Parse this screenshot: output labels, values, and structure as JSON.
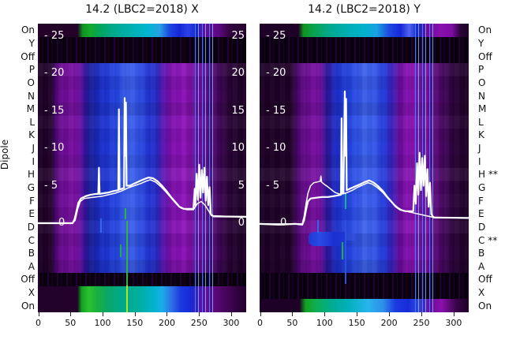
{
  "figure": {
    "left_axis_label": "Dipole",
    "panels": [
      {
        "title": "14.2 (LBC2=2018) X",
        "row_labels": [
          "On",
          "Y",
          "Off",
          "P",
          "O",
          "N",
          "M",
          "L",
          "K",
          "J",
          "I",
          "H",
          "G",
          "F",
          "E",
          "D",
          "C",
          "B",
          "A",
          "Off",
          "X",
          "On"
        ],
        "x_tick_labels": [
          "0",
          "50",
          "100",
          "150",
          "200",
          "250",
          "300"
        ],
        "inner_tick_labels_left": [
          "- 25",
          "- 20",
          "- 15",
          "- 10",
          "- 5",
          "0"
        ],
        "inner_tick_labels_right": [
          "25",
          "20",
          "15",
          "10",
          "5",
          "0"
        ]
      },
      {
        "title": "14.2 (LBC2=2018) Y",
        "row_labels": [
          "On",
          "Y",
          "Off",
          "P",
          "O",
          "N",
          "M",
          "L",
          "K",
          "J",
          "I",
          "H **",
          "G",
          "F",
          "E",
          "D",
          "C **",
          "B",
          "A",
          "Off",
          "X",
          "On"
        ],
        "x_tick_labels": [
          "0",
          "50",
          "100",
          "150",
          "200",
          "250",
          "300"
        ],
        "inner_tick_labels_left": [
          "- 25",
          "- 20",
          "- 15",
          "- 10",
          "- 5",
          "0"
        ],
        "inner_tick_labels_right": []
      }
    ]
  },
  "chart_data": {
    "type": "heatmap",
    "subtype": "dipole-power-heatmap-with-spectrum-line-overlay",
    "x_axis": {
      "label": "",
      "range": [
        0,
        324
      ],
      "ticks": [
        0,
        50,
        100,
        150,
        200,
        250,
        300
      ]
    },
    "row_axis": {
      "label": "Dipole",
      "rows_top_to_bottom": [
        "On",
        "Y",
        "Off",
        "P",
        "O",
        "N",
        "M",
        "L",
        "K",
        "J",
        "I",
        "H",
        "G",
        "F",
        "E",
        "D",
        "C",
        "B",
        "A",
        "Off",
        "X",
        "On"
      ]
    },
    "overlay_value_axis": {
      "ticks": [
        25,
        20,
        15,
        10,
        5,
        0
      ],
      "zero_at_row": "D"
    },
    "colormap": "low=black/dark-purple, mid=magenta then blue, high=cyan/green (spectral)",
    "notes": "On test rows show strong green/cyan broadband power; Off/X/Y control rows are near black; RFI spikes near x=127/137 and cluster near x=240-268",
    "panels": [
      {
        "polarization": "X",
        "flagged_rows": [],
        "series": [
          {
            "name": "median-spectrum",
            "points": [
              [
                0,
                0
              ],
              [
                54,
                0
              ],
              [
                57,
                0.5
              ],
              [
                60,
                1.6
              ],
              [
                63,
                2.7
              ],
              [
                67,
                3.3
              ],
              [
                74,
                3.6
              ],
              [
                82,
                3.8
              ],
              [
                90,
                3.9
              ],
              [
                94,
                3.9
              ],
              [
                95,
                7.4
              ],
              [
                96,
                3.9
              ],
              [
                102,
                4.0
              ],
              [
                110,
                4.1
              ],
              [
                118,
                4.3
              ],
              [
                125,
                4.4
              ],
              [
                126,
                15.2
              ],
              [
                127,
                4.5
              ],
              [
                131,
                4.6
              ],
              [
                134,
                4.7
              ],
              [
                135,
                16.7
              ],
              [
                136,
                9.0
              ],
              [
                137,
                16.1
              ],
              [
                138,
                5.0
              ],
              [
                143,
                5.0
              ],
              [
                150,
                5.3
              ],
              [
                158,
                5.6
              ],
              [
                166,
                5.9
              ],
              [
                172,
                6.1
              ],
              [
                179,
                6.0
              ],
              [
                186,
                5.6
              ],
              [
                193,
                5.0
              ],
              [
                200,
                4.3
              ],
              [
                207,
                3.5
              ],
              [
                214,
                2.8
              ],
              [
                220,
                2.2
              ],
              [
                227,
                1.9
              ],
              [
                242,
                1.9
              ],
              [
                244,
                4.6
              ],
              [
                245,
                2.4
              ],
              [
                247,
                6.6
              ],
              [
                249,
                3.1
              ],
              [
                251,
                7.8
              ],
              [
                253,
                3.4
              ],
              [
                255,
                7.1
              ],
              [
                257,
                4.1
              ],
              [
                259,
                7.4
              ],
              [
                261,
                3.0
              ],
              [
                263,
                6.2
              ],
              [
                265,
                2.4
              ],
              [
                267,
                4.8
              ],
              [
                269,
                1.2
              ],
              [
                273,
                0.9
              ],
              [
                324,
                0.85
              ]
            ]
          },
          {
            "name": "secondary-spectrum",
            "points": [
              [
                0,
                0
              ],
              [
                54,
                0
              ],
              [
                58,
                0.4
              ],
              [
                62,
                1.9
              ],
              [
                66,
                2.9
              ],
              [
                72,
                3.3
              ],
              [
                80,
                3.4
              ],
              [
                90,
                3.5
              ],
              [
                100,
                3.6
              ],
              [
                110,
                3.8
              ],
              [
                120,
                4.0
              ],
              [
                130,
                4.3
              ],
              [
                140,
                4.7
              ],
              [
                150,
                5.0
              ],
              [
                160,
                5.3
              ],
              [
                168,
                5.6
              ],
              [
                175,
                5.8
              ],
              [
                183,
                5.5
              ],
              [
                191,
                4.9
              ],
              [
                199,
                4.2
              ],
              [
                207,
                3.4
              ],
              [
                215,
                2.6
              ],
              [
                223,
                2.0
              ],
              [
                232,
                1.8
              ],
              [
                242,
                1.8
              ],
              [
                248,
                2.6
              ],
              [
                254,
                2.9
              ],
              [
                260,
                2.4
              ],
              [
                266,
                1.6
              ],
              [
                270,
                1.0
              ],
              [
                324,
                0.8
              ]
            ]
          }
        ]
      },
      {
        "polarization": "Y",
        "flagged_rows": [
          "H",
          "C"
        ],
        "series": [
          {
            "name": "median-spectrum",
            "points": [
              [
                0,
                -0.1
              ],
              [
                30,
                -0.2
              ],
              [
                55,
                -0.1
              ],
              [
                66,
                -0.2
              ],
              [
                69,
                0.4
              ],
              [
                72,
                1.8
              ],
              [
                75,
                2.9
              ],
              [
                79,
                3.3
              ],
              [
                88,
                3.4
              ],
              [
                97,
                3.5
              ],
              [
                106,
                3.5
              ],
              [
                114,
                3.6
              ],
              [
                121,
                3.7
              ],
              [
                126,
                3.8
              ],
              [
                127,
                14.0
              ],
              [
                128,
                4.0
              ],
              [
                130,
                4.1
              ],
              [
                132,
                17.6
              ],
              [
                133,
                9.0
              ],
              [
                134,
                16.6
              ],
              [
                135,
                4.4
              ],
              [
                140,
                4.6
              ],
              [
                148,
                4.9
              ],
              [
                156,
                5.2
              ],
              [
                163,
                5.5
              ],
              [
                170,
                5.7
              ],
              [
                177,
                5.4
              ],
              [
                184,
                4.9
              ],
              [
                191,
                4.3
              ],
              [
                198,
                3.5
              ],
              [
                205,
                2.8
              ],
              [
                211,
                2.2
              ],
              [
                218,
                1.8
              ],
              [
                226,
                1.6
              ],
              [
                238,
                1.6
              ],
              [
                240,
                5.0
              ],
              [
                242,
                2.6
              ],
              [
                244,
                8.0
              ],
              [
                246,
                3.8
              ],
              [
                248,
                9.4
              ],
              [
                250,
                4.4
              ],
              [
                252,
                8.7
              ],
              [
                254,
                5.0
              ],
              [
                256,
                9.0
              ],
              [
                258,
                3.6
              ],
              [
                260,
                7.2
              ],
              [
                262,
                2.2
              ],
              [
                264,
                5.4
              ],
              [
                266,
                1.2
              ],
              [
                270,
                0.75
              ],
              [
                324,
                0.7
              ]
            ]
          },
          {
            "name": "outlier-dipole-spectrum",
            "points": [
              [
                0,
                -0.1
              ],
              [
                66,
                -0.1
              ],
              [
                69,
                0.9
              ],
              [
                72,
                2.6
              ],
              [
                75,
                4.0
              ],
              [
                79,
                5.0
              ],
              [
                84,
                5.4
              ],
              [
                89,
                5.5
              ],
              [
                94,
                5.6
              ],
              [
                95,
                6.3
              ],
              [
                96,
                5.5
              ],
              [
                100,
                5.2
              ],
              [
                105,
                4.9
              ],
              [
                111,
                4.5
              ],
              [
                117,
                4.1
              ],
              [
                123,
                3.9
              ],
              [
                129,
                3.9
              ],
              [
                136,
                4.1
              ],
              [
                144,
                4.4
              ],
              [
                152,
                4.8
              ],
              [
                160,
                5.1
              ],
              [
                168,
                5.4
              ],
              [
                175,
                5.2
              ],
              [
                183,
                4.7
              ],
              [
                191,
                4.1
              ],
              [
                199,
                3.3
              ],
              [
                207,
                2.6
              ],
              [
                214,
                2.1
              ],
              [
                221,
                1.7
              ],
              [
                232,
                1.5
              ],
              [
                268,
                0.8
              ],
              [
                324,
                0.65
              ]
            ]
          }
        ]
      }
    ]
  }
}
